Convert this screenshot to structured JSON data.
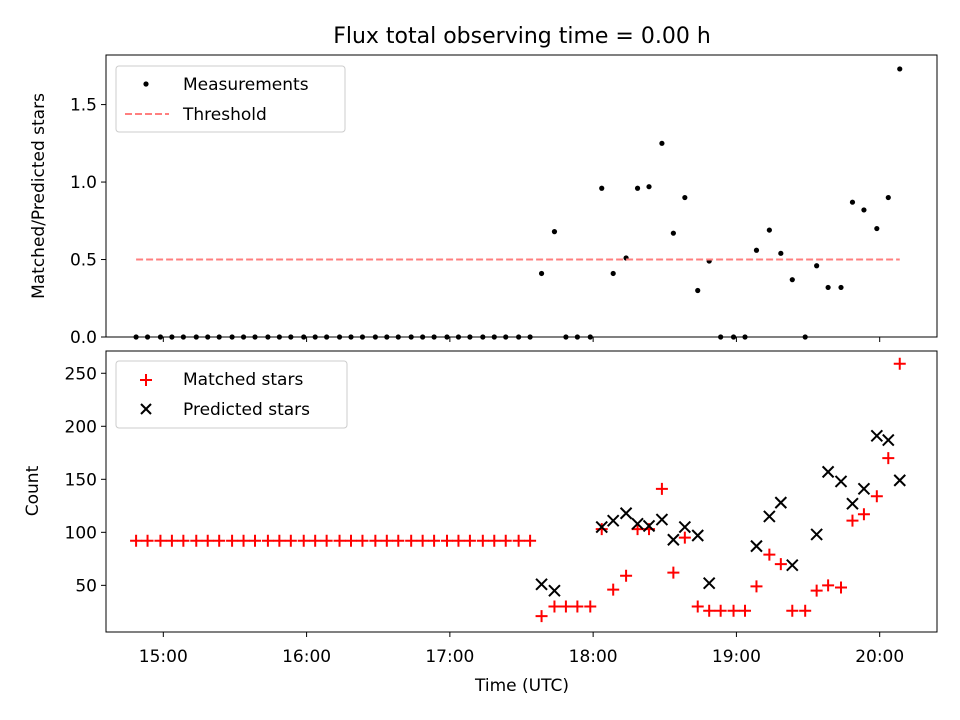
{
  "figure": {
    "title": "Flux total observing time = 0.00 h",
    "x_axis_label": "Time (UTC)",
    "x_tick_labels": [
      "15:00",
      "16:00",
      "17:00",
      "18:00",
      "19:00",
      "20:00"
    ]
  },
  "colors": {
    "measurements": "#000000",
    "threshold": "#ff7f7f",
    "matched": "#ff0000",
    "predicted": "#000000"
  },
  "chart_data": [
    {
      "type": "scatter",
      "panel": "top",
      "ylabel": "Matched/Predicted stars",
      "ylim": [
        0,
        1.82
      ],
      "y_ticks": [
        0.0,
        0.5,
        1.0,
        1.5
      ],
      "y_tick_labels": [
        "0.0",
        "0.5",
        "1.0",
        "1.5"
      ],
      "x_unit": "hours UTC",
      "xlim": [
        14.6,
        20.4
      ],
      "legend": {
        "placement": "upper-left",
        "entries": [
          "Measurements",
          "Threshold"
        ]
      },
      "series": [
        {
          "name": "Measurements",
          "marker": "dot",
          "x": [
            14.81,
            14.89,
            14.98,
            15.06,
            15.14,
            15.23,
            15.31,
            15.39,
            15.48,
            15.56,
            15.64,
            15.73,
            15.81,
            15.89,
            15.98,
            16.06,
            16.14,
            16.23,
            16.31,
            16.39,
            16.48,
            16.56,
            16.64,
            16.73,
            16.81,
            16.89,
            16.98,
            17.06,
            17.14,
            17.23,
            17.31,
            17.39,
            17.48,
            17.56,
            17.64,
            17.73,
            17.81,
            17.89,
            17.98,
            18.06,
            18.14,
            18.23,
            18.31,
            18.39,
            18.48,
            18.56,
            18.64,
            18.73,
            18.81,
            18.89,
            18.98,
            19.06,
            19.14,
            19.23,
            19.31,
            19.39,
            19.48,
            19.56,
            19.64,
            19.73,
            19.81,
            19.89,
            19.98,
            20.06,
            20.14
          ],
          "y": [
            0,
            0,
            0,
            0,
            0,
            0,
            0,
            0,
            0,
            0,
            0,
            0,
            0,
            0,
            0,
            0,
            0,
            0,
            0,
            0,
            0,
            0,
            0,
            0,
            0,
            0,
            0,
            0,
            0,
            0,
            0,
            0,
            0,
            0,
            0.41,
            0.68,
            0,
            0,
            0,
            0.96,
            0.41,
            0.51,
            0.96,
            0.97,
            1.25,
            0.67,
            0.9,
            0.3,
            0.49,
            0,
            0,
            0,
            0.56,
            0.69,
            0.54,
            0.37,
            0,
            0.46,
            0.32,
            0.32,
            0.87,
            0.82,
            0.7,
            0.9,
            1.73
          ]
        },
        {
          "name": "Threshold",
          "type": "line",
          "style": "dashed",
          "x": [
            14.81,
            20.14
          ],
          "y": [
            0.5,
            0.5
          ]
        }
      ]
    },
    {
      "type": "scatter",
      "panel": "bottom",
      "ylabel": "Count",
      "ylim": [
        6,
        271
      ],
      "y_ticks": [
        50,
        100,
        150,
        200,
        250
      ],
      "y_tick_labels": [
        "50",
        "100",
        "150",
        "200",
        "250"
      ],
      "xlabel": "Time (UTC)",
      "x_unit": "hours UTC",
      "xlim": [
        14.6,
        20.4
      ],
      "legend": {
        "placement": "upper-left",
        "entries": [
          "Matched stars",
          "Predicted stars"
        ]
      },
      "series": [
        {
          "name": "Matched stars",
          "marker": "plus",
          "x": [
            14.81,
            14.89,
            14.98,
            15.06,
            15.14,
            15.23,
            15.31,
            15.39,
            15.48,
            15.56,
            15.64,
            15.73,
            15.81,
            15.89,
            15.98,
            16.06,
            16.14,
            16.23,
            16.31,
            16.39,
            16.48,
            16.56,
            16.64,
            16.73,
            16.81,
            16.89,
            16.98,
            17.06,
            17.14,
            17.23,
            17.31,
            17.39,
            17.48,
            17.56,
            17.64,
            17.73,
            17.81,
            17.89,
            17.98,
            18.06,
            18.14,
            18.23,
            18.31,
            18.39,
            18.48,
            18.56,
            18.64,
            18.73,
            18.81,
            18.89,
            18.98,
            19.06,
            19.14,
            19.23,
            19.31,
            19.39,
            19.48,
            19.56,
            19.64,
            19.73,
            19.81,
            19.89,
            19.98,
            20.06,
            20.14
          ],
          "y": [
            92,
            92,
            92,
            92,
            92,
            92,
            92,
            92,
            92,
            92,
            92,
            92,
            92,
            92,
            92,
            92,
            92,
            92,
            92,
            92,
            92,
            92,
            92,
            92,
            92,
            92,
            92,
            92,
            92,
            92,
            92,
            92,
            92,
            92,
            21,
            30,
            30,
            30,
            30,
            103,
            46,
            59,
            103,
            103,
            141,
            62,
            95,
            30,
            26,
            26,
            26,
            26,
            49,
            79,
            70,
            26,
            26,
            45,
            50,
            48,
            111,
            117,
            134,
            170,
            259
          ]
        },
        {
          "name": "Predicted stars",
          "marker": "x",
          "x": [
            17.64,
            17.73,
            18.06,
            18.14,
            18.23,
            18.31,
            18.39,
            18.48,
            18.56,
            18.64,
            18.73,
            18.81,
            19.14,
            19.23,
            19.31,
            19.39,
            19.56,
            19.64,
            19.73,
            19.81,
            19.89,
            19.98,
            20.06,
            20.14
          ],
          "y": [
            51,
            45,
            105,
            111,
            118,
            108,
            106,
            112,
            93,
            105,
            97,
            52,
            87,
            115,
            128,
            69,
            98,
            157,
            148,
            127,
            141,
            191,
            187,
            149
          ]
        }
      ]
    }
  ]
}
